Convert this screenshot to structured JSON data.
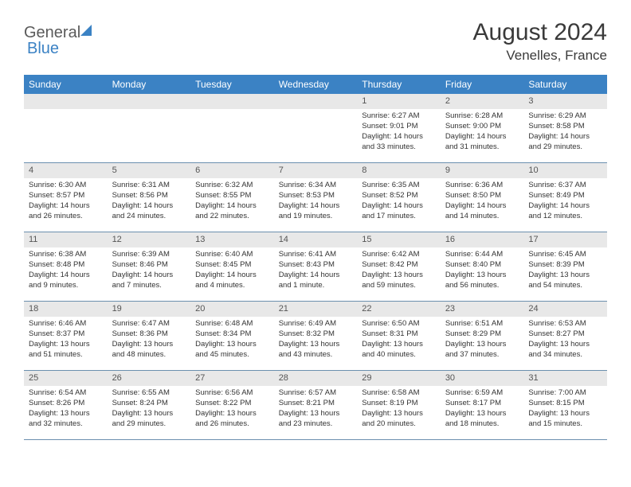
{
  "brand": {
    "part1": "General",
    "part2": "Blue"
  },
  "title": "August 2024",
  "location": "Venelles, France",
  "colors": {
    "header_bg": "#3b82c4",
    "header_text": "#ffffff",
    "daynum_bg": "#e8e8e8",
    "row_border": "#6b8fae",
    "title_color": "#3a3a3a",
    "body_text": "#333333"
  },
  "weekdays": [
    "Sunday",
    "Monday",
    "Tuesday",
    "Wednesday",
    "Thursday",
    "Friday",
    "Saturday"
  ],
  "weeks": [
    [
      {
        "day": "",
        "sunrise": "",
        "sunset": "",
        "daylight": ""
      },
      {
        "day": "",
        "sunrise": "",
        "sunset": "",
        "daylight": ""
      },
      {
        "day": "",
        "sunrise": "",
        "sunset": "",
        "daylight": ""
      },
      {
        "day": "",
        "sunrise": "",
        "sunset": "",
        "daylight": ""
      },
      {
        "day": "1",
        "sunrise": "Sunrise: 6:27 AM",
        "sunset": "Sunset: 9:01 PM",
        "daylight": "Daylight: 14 hours and 33 minutes."
      },
      {
        "day": "2",
        "sunrise": "Sunrise: 6:28 AM",
        "sunset": "Sunset: 9:00 PM",
        "daylight": "Daylight: 14 hours and 31 minutes."
      },
      {
        "day": "3",
        "sunrise": "Sunrise: 6:29 AM",
        "sunset": "Sunset: 8:58 PM",
        "daylight": "Daylight: 14 hours and 29 minutes."
      }
    ],
    [
      {
        "day": "4",
        "sunrise": "Sunrise: 6:30 AM",
        "sunset": "Sunset: 8:57 PM",
        "daylight": "Daylight: 14 hours and 26 minutes."
      },
      {
        "day": "5",
        "sunrise": "Sunrise: 6:31 AM",
        "sunset": "Sunset: 8:56 PM",
        "daylight": "Daylight: 14 hours and 24 minutes."
      },
      {
        "day": "6",
        "sunrise": "Sunrise: 6:32 AM",
        "sunset": "Sunset: 8:55 PM",
        "daylight": "Daylight: 14 hours and 22 minutes."
      },
      {
        "day": "7",
        "sunrise": "Sunrise: 6:34 AM",
        "sunset": "Sunset: 8:53 PM",
        "daylight": "Daylight: 14 hours and 19 minutes."
      },
      {
        "day": "8",
        "sunrise": "Sunrise: 6:35 AM",
        "sunset": "Sunset: 8:52 PM",
        "daylight": "Daylight: 14 hours and 17 minutes."
      },
      {
        "day": "9",
        "sunrise": "Sunrise: 6:36 AM",
        "sunset": "Sunset: 8:50 PM",
        "daylight": "Daylight: 14 hours and 14 minutes."
      },
      {
        "day": "10",
        "sunrise": "Sunrise: 6:37 AM",
        "sunset": "Sunset: 8:49 PM",
        "daylight": "Daylight: 14 hours and 12 minutes."
      }
    ],
    [
      {
        "day": "11",
        "sunrise": "Sunrise: 6:38 AM",
        "sunset": "Sunset: 8:48 PM",
        "daylight": "Daylight: 14 hours and 9 minutes."
      },
      {
        "day": "12",
        "sunrise": "Sunrise: 6:39 AM",
        "sunset": "Sunset: 8:46 PM",
        "daylight": "Daylight: 14 hours and 7 minutes."
      },
      {
        "day": "13",
        "sunrise": "Sunrise: 6:40 AM",
        "sunset": "Sunset: 8:45 PM",
        "daylight": "Daylight: 14 hours and 4 minutes."
      },
      {
        "day": "14",
        "sunrise": "Sunrise: 6:41 AM",
        "sunset": "Sunset: 8:43 PM",
        "daylight": "Daylight: 14 hours and 1 minute."
      },
      {
        "day": "15",
        "sunrise": "Sunrise: 6:42 AM",
        "sunset": "Sunset: 8:42 PM",
        "daylight": "Daylight: 13 hours and 59 minutes."
      },
      {
        "day": "16",
        "sunrise": "Sunrise: 6:44 AM",
        "sunset": "Sunset: 8:40 PM",
        "daylight": "Daylight: 13 hours and 56 minutes."
      },
      {
        "day": "17",
        "sunrise": "Sunrise: 6:45 AM",
        "sunset": "Sunset: 8:39 PM",
        "daylight": "Daylight: 13 hours and 54 minutes."
      }
    ],
    [
      {
        "day": "18",
        "sunrise": "Sunrise: 6:46 AM",
        "sunset": "Sunset: 8:37 PM",
        "daylight": "Daylight: 13 hours and 51 minutes."
      },
      {
        "day": "19",
        "sunrise": "Sunrise: 6:47 AM",
        "sunset": "Sunset: 8:36 PM",
        "daylight": "Daylight: 13 hours and 48 minutes."
      },
      {
        "day": "20",
        "sunrise": "Sunrise: 6:48 AM",
        "sunset": "Sunset: 8:34 PM",
        "daylight": "Daylight: 13 hours and 45 minutes."
      },
      {
        "day": "21",
        "sunrise": "Sunrise: 6:49 AM",
        "sunset": "Sunset: 8:32 PM",
        "daylight": "Daylight: 13 hours and 43 minutes."
      },
      {
        "day": "22",
        "sunrise": "Sunrise: 6:50 AM",
        "sunset": "Sunset: 8:31 PM",
        "daylight": "Daylight: 13 hours and 40 minutes."
      },
      {
        "day": "23",
        "sunrise": "Sunrise: 6:51 AM",
        "sunset": "Sunset: 8:29 PM",
        "daylight": "Daylight: 13 hours and 37 minutes."
      },
      {
        "day": "24",
        "sunrise": "Sunrise: 6:53 AM",
        "sunset": "Sunset: 8:27 PM",
        "daylight": "Daylight: 13 hours and 34 minutes."
      }
    ],
    [
      {
        "day": "25",
        "sunrise": "Sunrise: 6:54 AM",
        "sunset": "Sunset: 8:26 PM",
        "daylight": "Daylight: 13 hours and 32 minutes."
      },
      {
        "day": "26",
        "sunrise": "Sunrise: 6:55 AM",
        "sunset": "Sunset: 8:24 PM",
        "daylight": "Daylight: 13 hours and 29 minutes."
      },
      {
        "day": "27",
        "sunrise": "Sunrise: 6:56 AM",
        "sunset": "Sunset: 8:22 PM",
        "daylight": "Daylight: 13 hours and 26 minutes."
      },
      {
        "day": "28",
        "sunrise": "Sunrise: 6:57 AM",
        "sunset": "Sunset: 8:21 PM",
        "daylight": "Daylight: 13 hours and 23 minutes."
      },
      {
        "day": "29",
        "sunrise": "Sunrise: 6:58 AM",
        "sunset": "Sunset: 8:19 PM",
        "daylight": "Daylight: 13 hours and 20 minutes."
      },
      {
        "day": "30",
        "sunrise": "Sunrise: 6:59 AM",
        "sunset": "Sunset: 8:17 PM",
        "daylight": "Daylight: 13 hours and 18 minutes."
      },
      {
        "day": "31",
        "sunrise": "Sunrise: 7:00 AM",
        "sunset": "Sunset: 8:15 PM",
        "daylight": "Daylight: 13 hours and 15 minutes."
      }
    ]
  ]
}
